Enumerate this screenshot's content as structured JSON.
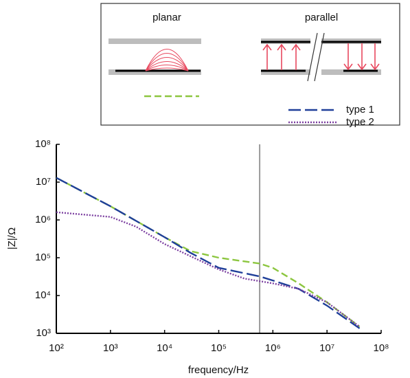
{
  "chart_data": {
    "type": "line",
    "xlabel": "frequency/Hz",
    "ylabel": "|Z|/Ω",
    "log_x": true,
    "log_y": true,
    "xlim": [
      100,
      100000000
    ],
    "ylim": [
      1000,
      100000000
    ],
    "xticks": [
      {
        "value": 100,
        "label": "10²"
      },
      {
        "value": 1000,
        "label": "10³"
      },
      {
        "value": 10000,
        "label": "10⁴"
      },
      {
        "value": 100000,
        "label": "10⁵"
      },
      {
        "value": 1000000,
        "label": "10⁶"
      },
      {
        "value": 10000000,
        "label": "10⁷"
      },
      {
        "value": 100000000,
        "label": "10⁸"
      }
    ],
    "yticks": [
      {
        "value": 1000,
        "label": "10³"
      },
      {
        "value": 10000,
        "label": "10⁴"
      },
      {
        "value": 100000,
        "label": "10⁵"
      },
      {
        "value": 1000000,
        "label": "10⁶"
      },
      {
        "value": 10000000,
        "label": "10⁷"
      },
      {
        "value": 100000000,
        "label": "10⁸"
      }
    ],
    "vline": 570000,
    "legend_group_label": "parallel",
    "series": [
      {
        "name": "planar",
        "color": "#8cc63f",
        "dash": "10 5",
        "x": [
          100,
          1000,
          10000,
          30000,
          100000,
          570000,
          1000000,
          3000000,
          10000000,
          40000000
        ],
        "values": [
          13000000,
          2300000,
          350000,
          150000,
          100000,
          70000,
          54000,
          21000,
          6600,
          1500
        ]
      },
      {
        "name": "type 1",
        "color": "#1f3f99",
        "dash": "18 6",
        "x": [
          100,
          1000,
          10000,
          30000,
          100000,
          570000,
          1000000,
          3000000,
          10000000,
          40000000
        ],
        "values": [
          13000000,
          2300000,
          350000,
          135000,
          54000,
          32000,
          25000,
          15000,
          5400,
          1350
        ]
      },
      {
        "name": "type 2",
        "color": "#7b3fa0",
        "dash": "2 2",
        "x": [
          100,
          1000,
          3000,
          10000,
          100000,
          300000,
          1000000,
          3000000,
          10000000,
          40000000
        ],
        "values": [
          1600000,
          1200000,
          660000,
          230000,
          49000,
          28000,
          21000,
          15000,
          6600,
          1500
        ]
      }
    ]
  }
}
